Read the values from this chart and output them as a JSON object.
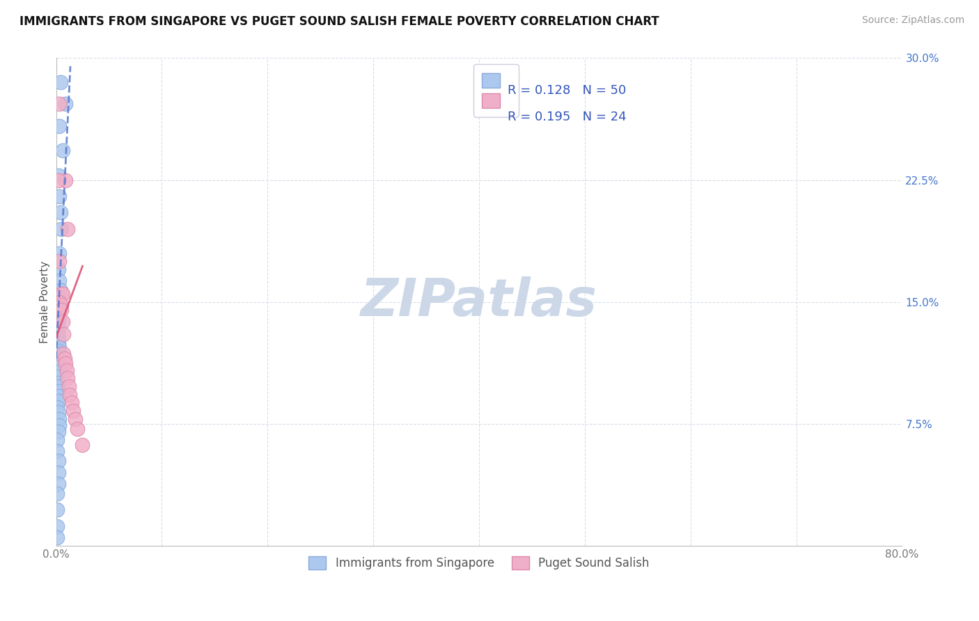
{
  "title": "IMMIGRANTS FROM SINGAPORE VS PUGET SOUND SALISH FEMALE POVERTY CORRELATION CHART",
  "source": "Source: ZipAtlas.com",
  "ylabel": "Female Poverty",
  "xlim": [
    0.0,
    0.8
  ],
  "ylim": [
    0.0,
    0.3
  ],
  "xticks": [
    0.0,
    0.1,
    0.2,
    0.3,
    0.4,
    0.5,
    0.6,
    0.7,
    0.8
  ],
  "xticklabels": [
    "0.0%",
    "",
    "",
    "",
    "",
    "",
    "",
    "",
    "80.0%"
  ],
  "yticks": [
    0.0,
    0.075,
    0.15,
    0.225,
    0.3
  ],
  "yticklabels": [
    "",
    "7.5%",
    "15.0%",
    "22.5%",
    "30.0%"
  ],
  "blue_R": "0.128",
  "blue_N": "50",
  "pink_R": "0.195",
  "pink_N": "24",
  "blue_color": "#adc8ee",
  "pink_color": "#f0afc8",
  "blue_line_color": "#5577cc",
  "pink_line_color": "#dd5577",
  "watermark_color": "#ccd8e8",
  "background_color": "#ffffff",
  "grid_color": "#d8dde8",
  "blue_scatter_x": [
    0.004,
    0.009,
    0.003,
    0.006,
    0.002,
    0.003,
    0.004,
    0.005,
    0.003,
    0.002,
    0.003,
    0.004,
    0.002,
    0.003,
    0.002,
    0.001,
    0.002,
    0.002,
    0.001,
    0.002,
    0.001,
    0.002,
    0.002,
    0.003,
    0.002,
    0.003,
    0.002,
    0.001,
    0.002,
    0.003,
    0.001,
    0.002,
    0.002,
    0.002,
    0.002,
    0.002,
    0.001,
    0.002,
    0.003,
    0.003,
    0.002,
    0.001,
    0.001,
    0.002,
    0.002,
    0.002,
    0.001,
    0.001,
    0.001,
    0.001
  ],
  "blue_scatter_y": [
    0.285,
    0.272,
    0.258,
    0.243,
    0.228,
    0.215,
    0.205,
    0.195,
    0.18,
    0.17,
    0.163,
    0.157,
    0.152,
    0.148,
    0.145,
    0.143,
    0.14,
    0.138,
    0.135,
    0.133,
    0.13,
    0.128,
    0.125,
    0.122,
    0.12,
    0.118,
    0.115,
    0.112,
    0.11,
    0.107,
    0.104,
    0.1,
    0.098,
    0.095,
    0.092,
    0.089,
    0.085,
    0.082,
    0.078,
    0.074,
    0.07,
    0.065,
    0.058,
    0.052,
    0.045,
    0.038,
    0.032,
    0.022,
    0.012,
    0.005
  ],
  "pink_scatter_x": [
    0.003,
    0.009,
    0.011,
    0.002,
    0.003,
    0.005,
    0.006,
    0.003,
    0.005,
    0.005,
    0.006,
    0.007,
    0.007,
    0.008,
    0.009,
    0.01,
    0.011,
    0.012,
    0.013,
    0.015,
    0.016,
    0.018,
    0.02,
    0.025
  ],
  "pink_scatter_y": [
    0.272,
    0.225,
    0.195,
    0.225,
    0.175,
    0.155,
    0.155,
    0.15,
    0.148,
    0.145,
    0.138,
    0.13,
    0.118,
    0.115,
    0.112,
    0.108,
    0.103,
    0.098,
    0.093,
    0.088,
    0.083,
    0.078,
    0.072,
    0.062
  ],
  "blue_trend_x": [
    0.0,
    0.0135
  ],
  "blue_trend_y": [
    0.115,
    0.295
  ],
  "pink_trend_x": [
    0.0,
    0.025
  ],
  "pink_trend_y": [
    0.128,
    0.172
  ]
}
